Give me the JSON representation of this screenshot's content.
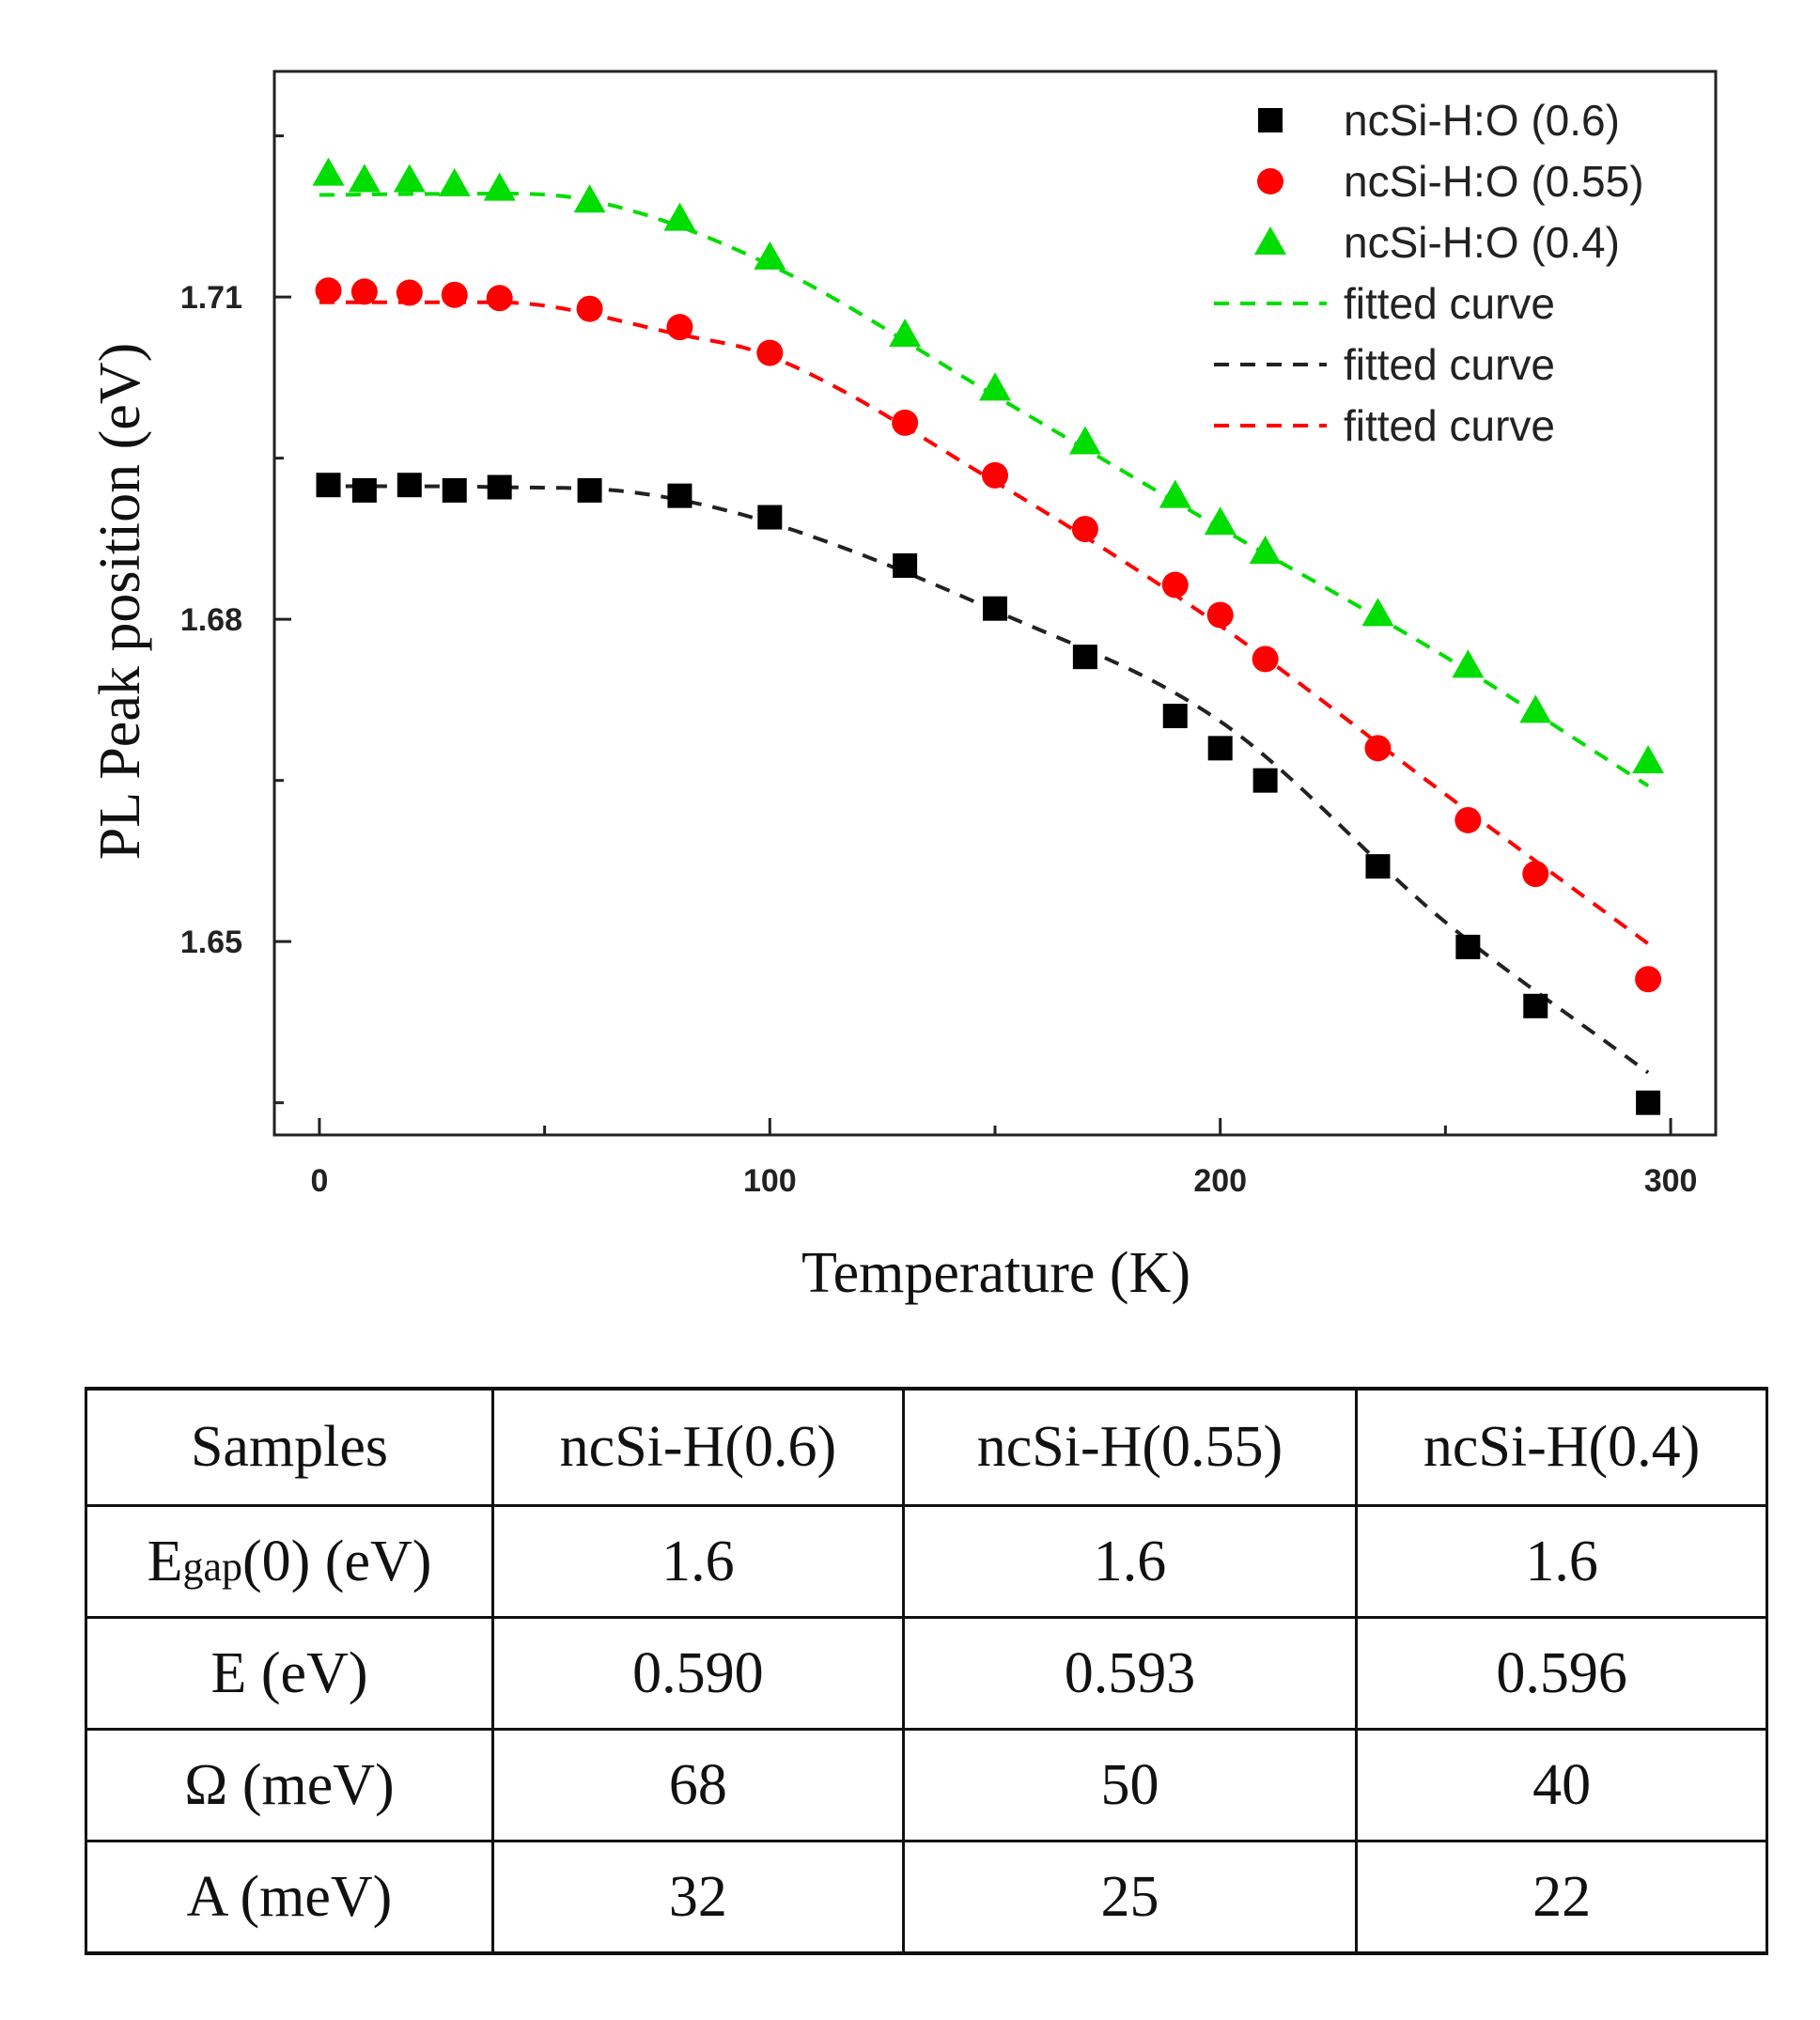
{
  "chart_data": {
    "type": "scatter",
    "xlabel": "Temperature (K)",
    "ylabel": "PL Peak position (eV)",
    "xlim": [
      -10,
      310
    ],
    "ylim": [
      1.632,
      1.731
    ],
    "x_ticks": [
      0,
      100,
      200,
      300
    ],
    "x_tick_labels": [
      "0",
      "100",
      "200",
      "300"
    ],
    "y_ticks": [
      1.65,
      1.68,
      1.71
    ],
    "y_tick_labels": [
      "1.65",
      "1.68",
      "1.71"
    ],
    "x_minor_ticks": [
      50,
      150,
      250
    ],
    "y_minor_ticks": [
      1.635,
      1.665,
      1.695,
      1.725
    ],
    "legend_position": "top-right",
    "x": [
      2,
      10,
      20,
      30,
      40,
      60,
      80,
      100,
      130,
      150,
      170,
      190,
      200,
      210,
      235,
      255,
      270,
      295
    ],
    "series": [
      {
        "name": "ncSi-H:O (0.6)",
        "marker": "square",
        "color": "#000000",
        "values": [
          1.6925,
          1.692,
          1.6925,
          1.692,
          1.6923,
          1.692,
          1.6915,
          1.6895,
          1.685,
          1.681,
          1.6765,
          1.671,
          1.668,
          1.665,
          1.657,
          1.6495,
          1.644,
          1.635
        ]
      },
      {
        "name": "ncSi-H:O (0.55)",
        "marker": "circle",
        "color": "#ff0000",
        "values": [
          1.7106,
          1.7105,
          1.7104,
          1.7102,
          1.7099,
          1.7089,
          1.7072,
          1.7048,
          1.6983,
          1.6934,
          1.6884,
          1.6832,
          1.6804,
          1.6763,
          1.668,
          1.6613,
          1.6563,
          1.6465
        ]
      },
      {
        "name": "ncSi-H:O (0.4)",
        "marker": "triangle",
        "color": "#00dd00",
        "values": [
          1.7215,
          1.7209,
          1.7209,
          1.7205,
          1.7201,
          1.719,
          1.7173,
          1.7137,
          1.7065,
          1.7015,
          1.6965,
          1.6915,
          1.689,
          1.6863,
          1.6805,
          1.6757,
          1.6715,
          1.6668
        ]
      }
    ],
    "fits": [
      {
        "name": "fitted curve",
        "color": "#00dd00",
        "dash": true,
        "anchors_x": [
          0,
          30,
          60,
          100,
          150,
          200,
          250,
          295
        ],
        "anchors_y": [
          1.7195,
          1.7196,
          1.719,
          1.713,
          1.7008,
          1.6885,
          1.6765,
          1.6645
        ]
      },
      {
        "name": "fitted curve",
        "color": "#222222",
        "dash": true,
        "anchors_x": [
          0,
          40,
          70,
          100,
          150,
          200,
          250,
          295
        ],
        "anchors_y": [
          1.6924,
          1.6923,
          1.6918,
          1.689,
          1.6808,
          1.6705,
          1.6518,
          1.6378
        ]
      },
      {
        "name": "fitted curve",
        "color": "#ff0000",
        "dash": true,
        "anchors_x": [
          0,
          40,
          80,
          100,
          150,
          200,
          250,
          295
        ],
        "anchors_y": [
          1.7095,
          1.7095,
          1.7065,
          1.7045,
          1.6928,
          1.6794,
          1.6637,
          1.6498
        ]
      }
    ]
  },
  "table": {
    "headers": [
      "Samples",
      "ncSi-H(0.6)",
      "ncSi-H(0.55)",
      "ncSi-H(0.4)"
    ],
    "rows": [
      {
        "param": "E",
        "param_sub": "gap",
        "param_suffix": "(0) (eV)",
        "values": [
          "1.6",
          "1.6",
          "1.6"
        ]
      },
      {
        "param": "E (eV)",
        "values": [
          "0.590",
          "0.593",
          "0.596"
        ]
      },
      {
        "param": "Ω (meV)",
        "values": [
          "68",
          "50",
          "40"
        ]
      },
      {
        "param": "A (meV)",
        "values": [
          "32",
          "25",
          "22"
        ]
      }
    ]
  }
}
